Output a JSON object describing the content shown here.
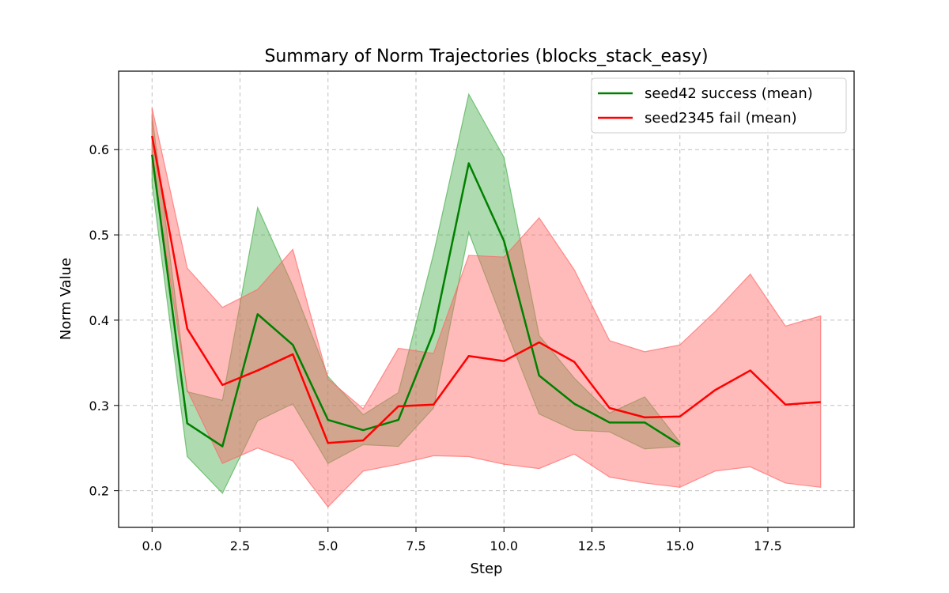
{
  "chart_data": {
    "type": "line",
    "title": "Summary of Norm Trajectories (blocks_stack_easy)",
    "xlabel": "Step",
    "ylabel": "Norm Value",
    "xlim": [
      -0.95,
      19.95
    ],
    "ylim": [
      0.157,
      0.692
    ],
    "xticks": [
      0.0,
      2.5,
      5.0,
      7.5,
      10.0,
      12.5,
      15.0,
      17.5
    ],
    "xtick_labels": [
      "0.0",
      "2.5",
      "5.0",
      "7.5",
      "10.0",
      "12.5",
      "15.0",
      "17.5"
    ],
    "yticks": [
      0.2,
      0.3,
      0.4,
      0.5,
      0.6
    ],
    "ytick_labels": [
      "0.2",
      "0.3",
      "0.4",
      "0.5",
      "0.6"
    ],
    "grid": true,
    "legend_position": "top-right",
    "series": [
      {
        "name": "seed42 success (mean)",
        "color": "#008000",
        "band_color": "#4caf50",
        "x": [
          0,
          1,
          2,
          3,
          4,
          5,
          6,
          7,
          8,
          9,
          10,
          11,
          12,
          13,
          14,
          15
        ],
        "y": [
          0.594,
          0.279,
          0.252,
          0.407,
          0.371,
          0.283,
          0.271,
          0.283,
          0.386,
          0.584,
          0.493,
          0.335,
          0.302,
          0.28,
          0.28,
          0.254
        ],
        "upper": [
          0.64,
          0.316,
          0.306,
          0.532,
          0.44,
          0.334,
          0.289,
          0.315,
          0.478,
          0.665,
          0.591,
          0.382,
          0.332,
          0.291,
          0.31,
          0.257
        ],
        "lower": [
          0.56,
          0.24,
          0.197,
          0.282,
          0.302,
          0.232,
          0.254,
          0.252,
          0.297,
          0.503,
          0.395,
          0.29,
          0.271,
          0.269,
          0.249,
          0.252
        ]
      },
      {
        "name": "seed2345 fail (mean)",
        "color": "#ff0000",
        "band_color": "#ff6666",
        "x": [
          0,
          1,
          2,
          3,
          4,
          5,
          6,
          7,
          8,
          9,
          10,
          11,
          12,
          13,
          14,
          15,
          16,
          17,
          18,
          19
        ],
        "y": [
          0.616,
          0.39,
          0.324,
          0.341,
          0.36,
          0.256,
          0.259,
          0.299,
          0.301,
          0.358,
          0.352,
          0.374,
          0.351,
          0.297,
          0.286,
          0.287,
          0.318,
          0.341,
          0.301,
          0.304
        ],
        "upper": [
          0.649,
          0.461,
          0.415,
          0.436,
          0.483,
          0.331,
          0.296,
          0.367,
          0.361,
          0.476,
          0.474,
          0.52,
          0.459,
          0.376,
          0.363,
          0.371,
          0.41,
          0.454,
          0.393,
          0.405
        ],
        "lower": [
          0.584,
          0.318,
          0.232,
          0.25,
          0.235,
          0.181,
          0.223,
          0.231,
          0.241,
          0.24,
          0.231,
          0.226,
          0.243,
          0.216,
          0.209,
          0.204,
          0.223,
          0.228,
          0.209,
          0.204
        ]
      }
    ]
  }
}
